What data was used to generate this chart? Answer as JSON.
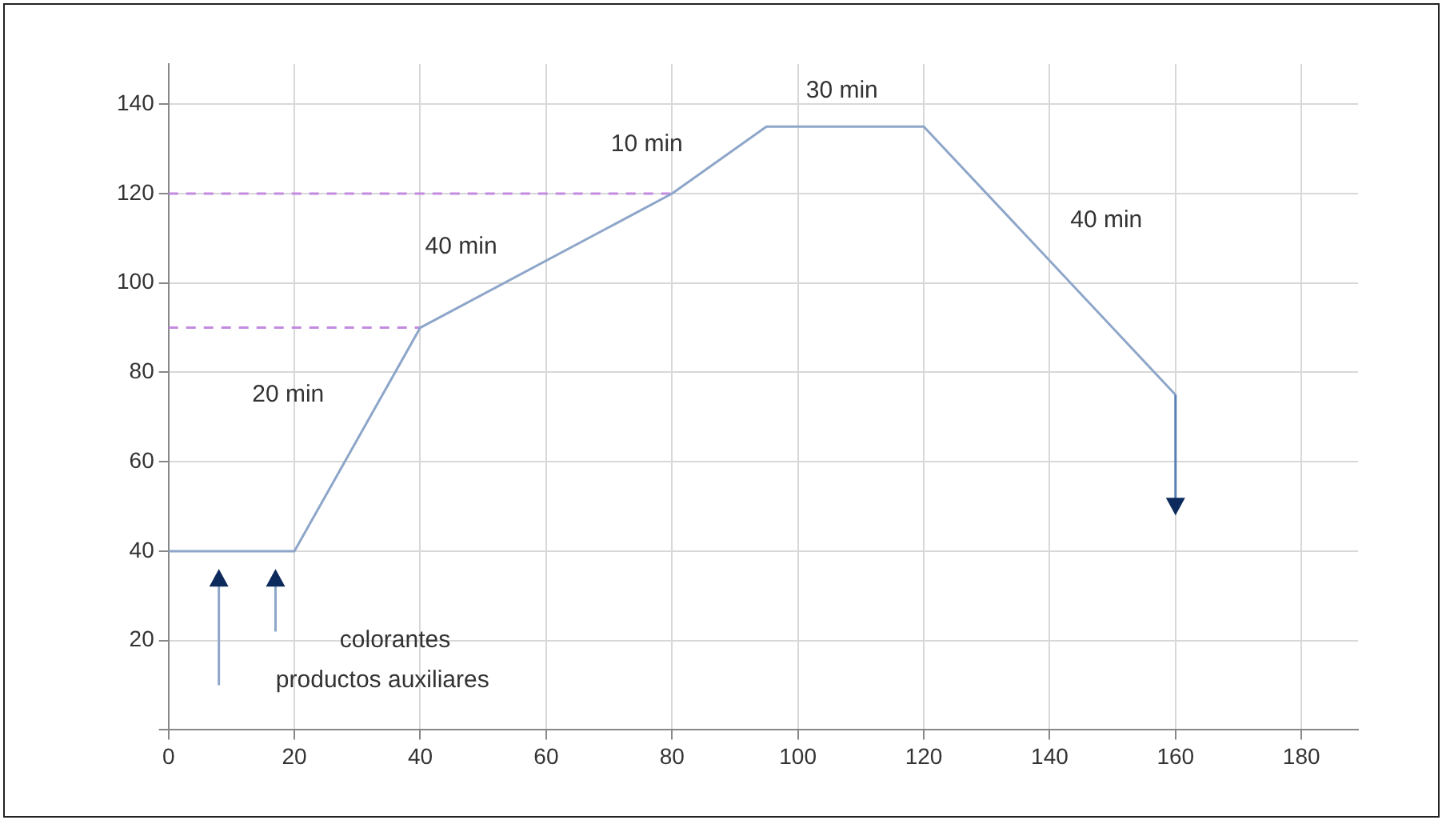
{
  "chart_data": {
    "type": "line",
    "xlim": [
      0,
      189
    ],
    "xticks": [
      0,
      20,
      40,
      60,
      80,
      100,
      120,
      140,
      160,
      180
    ],
    "ylim": [
      0,
      149
    ],
    "yticks": [
      {
        "value": 0,
        "label": null
      },
      20,
      40,
      60,
      80,
      100,
      120,
      140
    ],
    "grid": true,
    "legend": false,
    "marker": "none",
    "series": [
      {
        "color": "#8ea6c9",
        "line_style": "solid",
        "x": [
          0,
          20,
          40,
          80,
          95,
          120,
          160
        ],
        "values": [
          40,
          40,
          90,
          120,
          135,
          135,
          75
        ]
      },
      {
        "color": "#c48ae0",
        "line_style": "dashed",
        "x": [
          0,
          40
        ],
        "values": [
          90,
          90
        ]
      },
      {
        "color": "#c48ae0",
        "line_style": "dashed",
        "x": [
          0,
          80
        ],
        "values": [
          120,
          120
        ]
      }
    ],
    "annotations": [
      "20 min",
      "40 min",
      "10 min",
      "30 min",
      "40 min",
      "colorantes",
      "productos auxiliares"
    ]
  }
}
